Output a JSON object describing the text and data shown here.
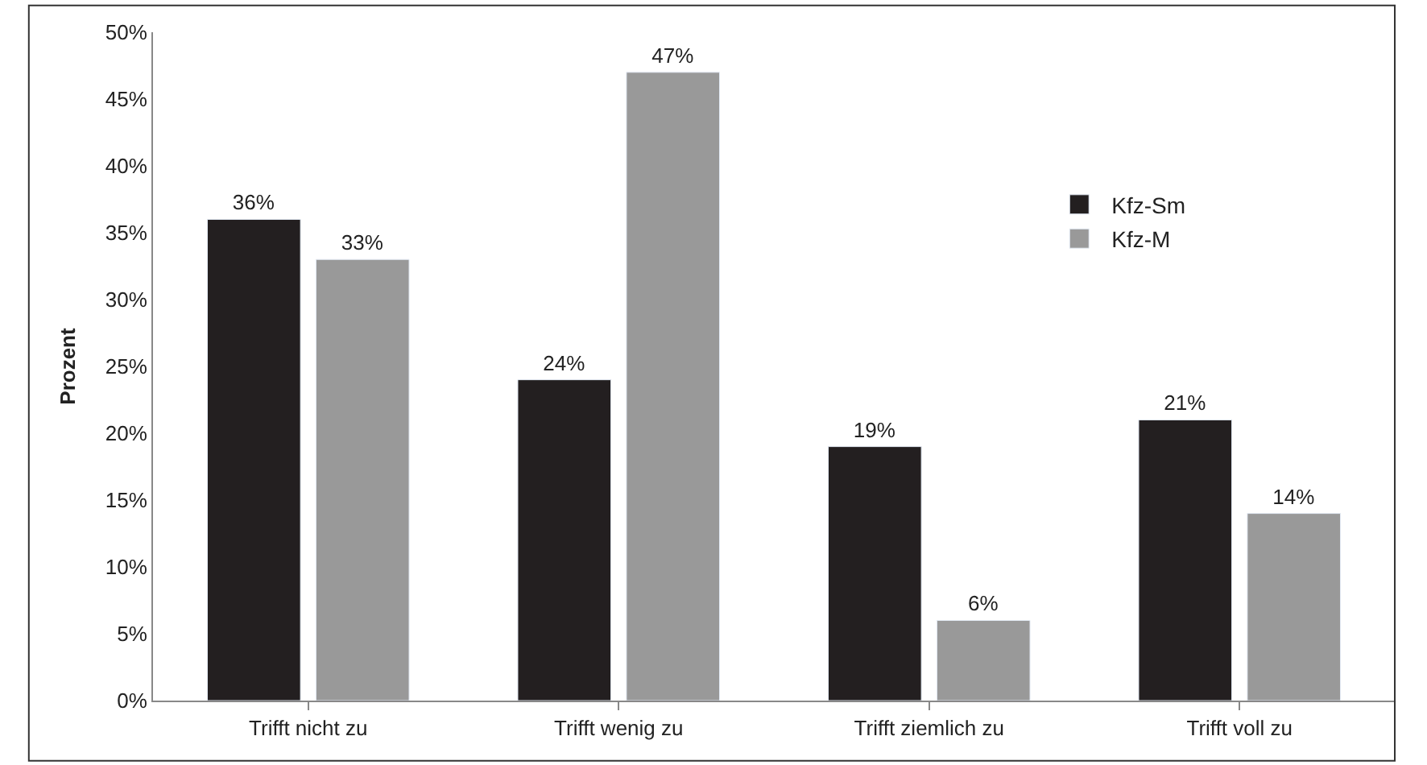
{
  "chart_data": {
    "type": "bar",
    "ylabel": "Prozent",
    "categories": [
      "Trifft nicht zu",
      "Trifft wenig zu",
      "Trifft ziemlich zu",
      "Trifft voll zu"
    ],
    "series": [
      {
        "name": "Kfz-Sm",
        "color": "#231f20",
        "values": [
          36,
          24,
          19,
          21
        ],
        "value_labels": [
          "36%",
          "24%",
          "19%",
          "21%"
        ]
      },
      {
        "name": "Kfz-M",
        "color": "#999999",
        "values": [
          33,
          47,
          6,
          14
        ],
        "value_labels": [
          "33%",
          "47%",
          "6%",
          "14%"
        ]
      }
    ],
    "ylim": [
      0,
      50
    ],
    "yticks": [
      {
        "value": 0,
        "label": "0%"
      },
      {
        "value": 5,
        "label": "5%"
      },
      {
        "value": 10,
        "label": "10%"
      },
      {
        "value": 15,
        "label": "15%"
      },
      {
        "value": 20,
        "label": "20%"
      },
      {
        "value": 25,
        "label": "25%"
      },
      {
        "value": 30,
        "label": "30%"
      },
      {
        "value": 35,
        "label": "35%"
      },
      {
        "value": 40,
        "label": "40%"
      },
      {
        "value": 45,
        "label": "45%"
      },
      {
        "value": 50,
        "label": "50%"
      }
    ],
    "legend": "right"
  }
}
